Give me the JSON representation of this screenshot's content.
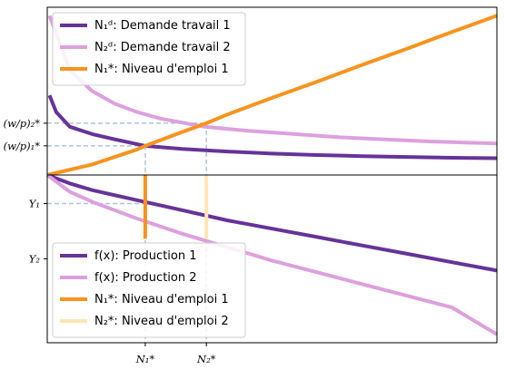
{
  "chart_data": [
    {
      "type": "line",
      "panel": "top",
      "title": "",
      "xlabel": "",
      "ylabel": "",
      "x_range": [
        0,
        10
      ],
      "y_range": [
        0,
        8
      ],
      "y_ticks": [
        {
          "label": "(w/p)₁*",
          "value": 1.39
        },
        {
          "label": "(w/p)₂*",
          "value": 2.47
        }
      ],
      "legend_position": "top-left",
      "series": [
        {
          "name": "N₁ᵈ: Demande travail 1",
          "color": "#663399",
          "points": [
            [
              0.05,
              3.8
            ],
            [
              0.2,
              3.0
            ],
            [
              0.5,
              2.3
            ],
            [
              1,
              1.95
            ],
            [
              1.5,
              1.7
            ],
            [
              2.18,
              1.39
            ],
            [
              3,
              1.24
            ],
            [
              4,
              1.12
            ],
            [
              5,
              1.02
            ],
            [
              6,
              0.95
            ],
            [
              7,
              0.9
            ],
            [
              8,
              0.86
            ],
            [
              9,
              0.82
            ],
            [
              10,
              0.8
            ]
          ]
        },
        {
          "name": "N₂ᵈ: Demande travail 2",
          "color": "#DDA0DD",
          "points": [
            [
              0.05,
              7.6
            ],
            [
              0.5,
              5.0
            ],
            [
              1,
              4.0
            ],
            [
              1.5,
              3.4
            ],
            [
              2,
              3.0
            ],
            [
              2.5,
              2.7
            ],
            [
              3.5,
              2.3
            ],
            [
              4.5,
              2.1
            ],
            [
              5.5,
              1.95
            ],
            [
              6.5,
              1.8
            ],
            [
              7.5,
              1.7
            ],
            [
              8.5,
              1.6
            ],
            [
              10,
              1.5
            ]
          ]
        },
        {
          "name": "N₁*: Niveau d'emploi 1",
          "color": "#F7931E",
          "points": [
            [
              0,
              0
            ],
            [
              1,
              0.5
            ],
            [
              2,
              1.22
            ],
            [
              2.18,
              1.39
            ],
            [
              3,
              2.05
            ],
            [
              3.54,
              2.47
            ],
            [
              4,
              2.88
            ],
            [
              5,
              3.68
            ],
            [
              6,
              4.45
            ],
            [
              7,
              5.25
            ],
            [
              8,
              6.02
            ],
            [
              9,
              6.82
            ],
            [
              10,
              7.6
            ]
          ]
        }
      ],
      "legend": [
        "N₁ᵈ: Demande travail 1",
        "N₂ᵈ: Demande travail 2",
        "N₁*: Niveau d'emploi 1"
      ]
    },
    {
      "type": "line",
      "panel": "bottom",
      "title": "",
      "xlabel": "",
      "ylabel": "",
      "x_range": [
        0,
        10
      ],
      "y_range": [
        0,
        10
      ],
      "y_ticks": [
        {
          "label": "Y₁",
          "value": 8.3
        },
        {
          "label": "Y₂",
          "value": 5.0
        }
      ],
      "x_ticks": [
        {
          "label": "N₁*",
          "value": 2.18
        },
        {
          "label": "N₂*",
          "value": 3.54
        }
      ],
      "legend_position": "bottom-left",
      "series": [
        {
          "name": "f(x): Production 1",
          "color": "#663399",
          "points": [
            [
              0,
              10
            ],
            [
              0.5,
              9.5
            ],
            [
              1,
              9.1
            ],
            [
              2,
              8.5
            ],
            [
              3,
              7.9
            ],
            [
              4,
              7.3
            ],
            [
              5,
              6.8
            ],
            [
              6,
              6.3
            ],
            [
              7,
              5.8
            ],
            [
              8,
              5.3
            ],
            [
              9,
              4.8
            ],
            [
              10,
              4.3
            ]
          ]
        },
        {
          "name": "f(x): Production 2",
          "color": "#DDA0DD",
          "points": [
            [
              0,
              10
            ],
            [
              0.5,
              9.0
            ],
            [
              1,
              8.4
            ],
            [
              2,
              7.4
            ],
            [
              3,
              6.5
            ],
            [
              4,
              5.7
            ],
            [
              5,
              4.9
            ],
            [
              6,
              4.2
            ],
            [
              7,
              3.5
            ],
            [
              8,
              2.8
            ],
            [
              9,
              2.1
            ],
            [
              10,
              0.5
            ]
          ]
        },
        {
          "name": "N₁*: Niveau d'emploi 1",
          "color": "#F7931E",
          "points": [
            [
              2.18,
              10
            ],
            [
              2.18,
              6.2
            ]
          ]
        },
        {
          "name": "N₂*: Niveau d'emploi 2",
          "color": "#FFE4B5",
          "points": [
            [
              3.54,
              10
            ],
            [
              3.54,
              6.2
            ]
          ]
        }
      ],
      "legend": [
        "f(x): Production 1",
        "f(x): Production 2",
        "N₁*: Niveau d'emploi 1",
        "N₂*: Niveau d'emploi 2"
      ]
    }
  ]
}
